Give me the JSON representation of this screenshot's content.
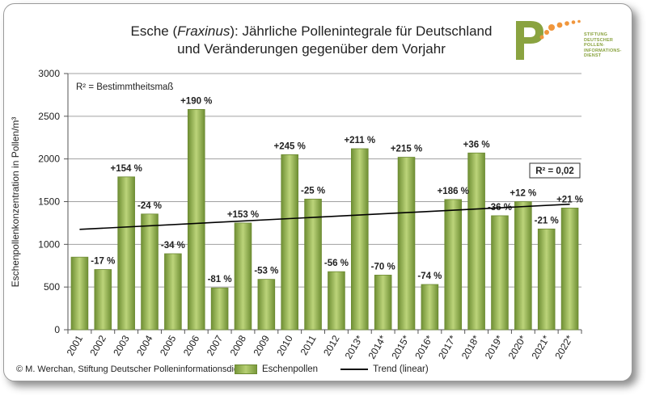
{
  "title_line1_pre": "Esche (",
  "title_line1_italic": "Fraxinus",
  "title_line1_post": "): Jährliche Pollenintegrale für Deutschland",
  "title_line2": "und Veränderungen gegenüber dem Vorjahr",
  "logo": {
    "lines": [
      "STIFTUNG",
      "DEUTSCHER",
      "POLLEN-",
      "INFORMATIONS-",
      "DIENST"
    ],
    "colors": {
      "green": "#8aa340",
      "orange": "#f0963c"
    }
  },
  "copyright": "© M. Werchan, Stiftung Deutscher Polleninformationsdienst",
  "chart_data": {
    "type": "bar",
    "categories": [
      "2001",
      "2002",
      "2003",
      "2004",
      "2005",
      "2006",
      "2007",
      "2008",
      "2009",
      "2010",
      "2011",
      "2012",
      "2013*",
      "2014*",
      "2015*",
      "2016*",
      "2017*",
      "2018*",
      "2019*",
      "2020*",
      "2021*",
      "2022*"
    ],
    "series": [
      {
        "name": "Eschenpollen",
        "values": [
          850,
          705,
          1790,
          1355,
          890,
          2580,
          490,
          1250,
          590,
          2050,
          1530,
          680,
          2120,
          640,
          2020,
          530,
          1525,
          2070,
          1335,
          1500,
          1180,
          1425
        ]
      }
    ],
    "data_labels": [
      "",
      "-17 %",
      "+154 %",
      "-24 %",
      "-34 %",
      "+190 %",
      "-81 %",
      "+153 %",
      "-53 %",
      "+245 %",
      "-25 %",
      "-56 %",
      "+211 %",
      "-70 %",
      "+215 %",
      "-74 %",
      "+186 %",
      "+36 %",
      "-36 %",
      "+12 %",
      "-21 %",
      "+21 %"
    ],
    "trend": {
      "name": "Trend (linear)",
      "start": 1175,
      "end": 1470,
      "r2_label": "R² = 0,02"
    },
    "annotation": "R² = Bestimmtheitsmaß",
    "ylabel": "Eschenpollenkonzentration in Pollen/m³",
    "xlabel": "",
    "ylim": [
      0,
      3000
    ],
    "yticks": [
      0,
      500,
      1000,
      1500,
      2000,
      2500,
      3000
    ],
    "grid": true,
    "legend_position": "bottom",
    "colors": {
      "bar_dark": "#6f8f34",
      "bar_light": "#bcd47a",
      "trend": "#000000",
      "grid": "#a0a0a0"
    }
  }
}
